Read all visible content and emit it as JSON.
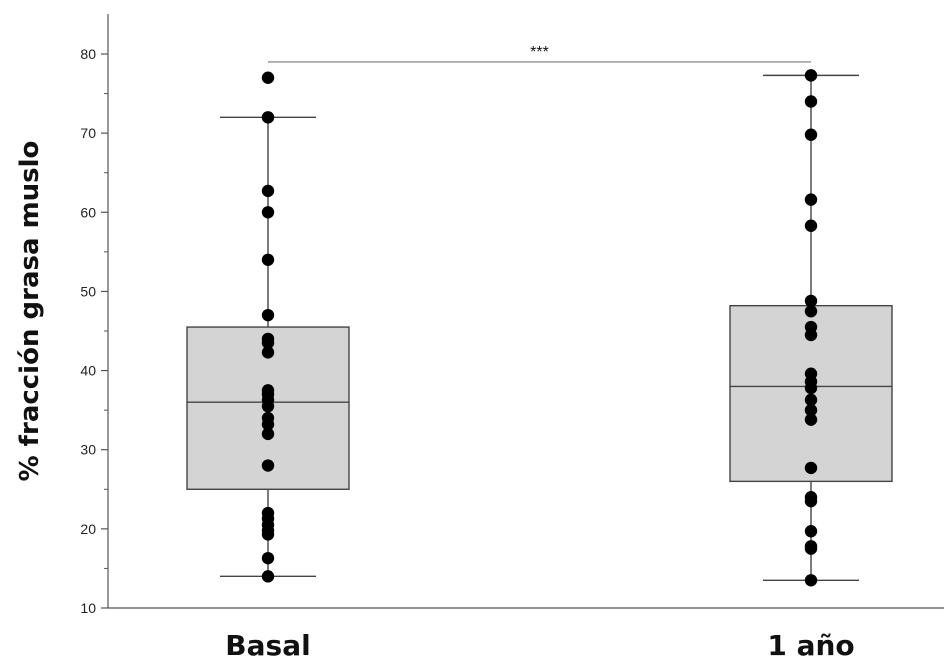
{
  "chart_data": {
    "type": "boxplot",
    "title": "",
    "xlabel": "",
    "ylabel": "% fracción grasa muslo",
    "ylim": [
      10,
      82
    ],
    "yticks_major": [
      10,
      20,
      30,
      40,
      50,
      60,
      70,
      80
    ],
    "yticks_minor": [
      15,
      25,
      35,
      45,
      55,
      65,
      75
    ],
    "categories": [
      "Basal",
      "1 año"
    ],
    "boxes": [
      {
        "category": "Basal",
        "whisker_low": 14,
        "q1": 25,
        "median": 36,
        "q3": 45.5,
        "whisker_high": 72,
        "points": [
          77,
          72,
          62.7,
          60,
          54,
          47,
          44,
          43.5,
          42.3,
          37.5,
          37,
          36.3,
          35.5,
          34,
          33.2,
          32,
          28,
          22,
          21.3,
          20.5,
          19.8,
          19.3,
          16.3,
          14
        ]
      },
      {
        "category": "1 año",
        "whisker_low": 13.5,
        "q1": 26,
        "median": 38,
        "q3": 48.2,
        "whisker_high": 77.3,
        "points": [
          77.3,
          74,
          69.8,
          61.6,
          58.3,
          48.8,
          47.5,
          45.5,
          44.5,
          39.6,
          38.6,
          37.8,
          36.3,
          35,
          33.8,
          27.7,
          24,
          23.5,
          19.7,
          17.8,
          17.5,
          13.5
        ]
      }
    ],
    "significance": {
      "label": "***",
      "between": [
        "Basal",
        "1 año"
      ],
      "y": 79
    },
    "colors": {
      "box_fill": "#d4d4d4",
      "box_stroke": "#444444",
      "point": "#000000",
      "axis": "#555555"
    },
    "grid": false,
    "legend": "none"
  }
}
